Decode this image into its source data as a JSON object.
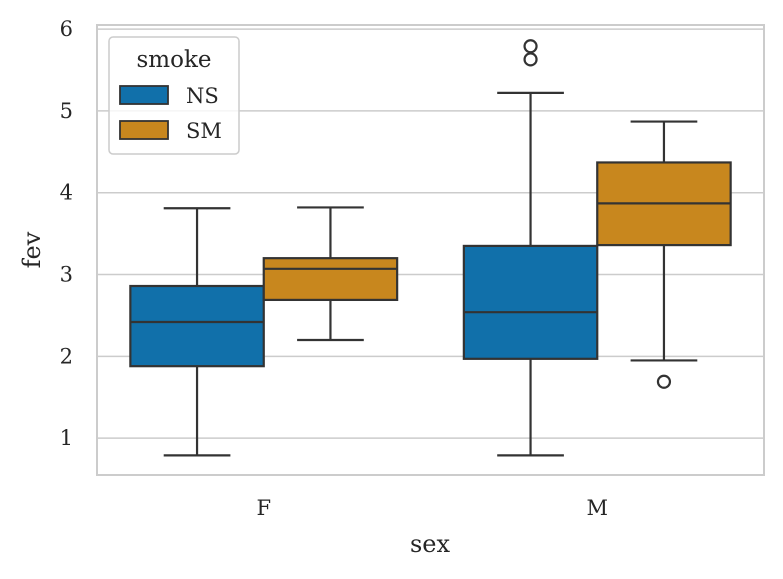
{
  "chart_data": {
    "type": "box",
    "xlabel": "sex",
    "ylabel": "fev",
    "categories": [
      "F",
      "M"
    ],
    "ylim": [
      0.55,
      6.05
    ],
    "yticks": [
      1,
      2,
      3,
      4,
      5,
      6
    ],
    "grid": true,
    "legend": {
      "title": "smoke",
      "position": "top-left",
      "entries": [
        "NS",
        "SM"
      ]
    },
    "series": [
      {
        "name": "NS",
        "color": "#1170AA",
        "boxes": [
          {
            "category": "F",
            "whisker_low": 0.79,
            "q1": 1.88,
            "median": 2.42,
            "q3": 2.86,
            "whisker_high": 3.81,
            "outliers": []
          },
          {
            "category": "M",
            "whisker_low": 0.79,
            "q1": 1.97,
            "median": 2.54,
            "q3": 3.35,
            "whisker_high": 5.22,
            "outliers": [
              5.63,
              5.79
            ]
          }
        ]
      },
      {
        "name": "SM",
        "color": "#C8871E",
        "boxes": [
          {
            "category": "F",
            "whisker_low": 2.2,
            "q1": 2.69,
            "median": 3.07,
            "q3": 3.2,
            "whisker_high": 3.82,
            "outliers": []
          },
          {
            "category": "M",
            "whisker_low": 1.95,
            "q1": 3.36,
            "median": 3.87,
            "q3": 4.37,
            "whisker_high": 4.87,
            "outliers": [
              1.69
            ]
          }
        ]
      }
    ]
  }
}
